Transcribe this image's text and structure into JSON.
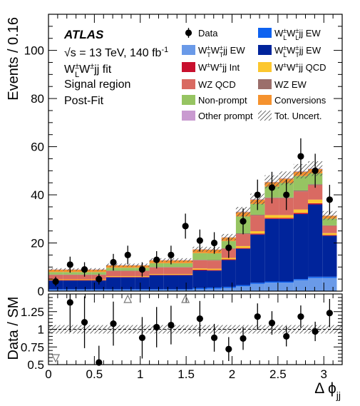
{
  "chart_data": {
    "type": "bar",
    "stacked": true,
    "x": [
      0.0785,
      0.2356,
      0.3927,
      0.5498,
      0.7069,
      0.8639,
      1.021,
      1.1781,
      1.3352,
      1.4923,
      1.6493,
      1.8064,
      1.9635,
      2.1206,
      2.2777,
      2.4347,
      2.5918,
      2.7489,
      2.906,
      3.0631
    ],
    "bin_edges": [
      0,
      0.1571,
      0.3142,
      0.4712,
      0.6283,
      0.7854,
      0.9425,
      1.0996,
      1.2566,
      1.4137,
      1.5708,
      1.7279,
      1.885,
      2.042,
      2.1991,
      2.3562,
      2.5133,
      2.6704,
      2.8274,
      2.9845,
      3.1416
    ],
    "series": [
      {
        "name": "W^{±}_{T}W^{±}_{T}jj EW",
        "color": "#6a9ae8",
        "values": [
          0.5,
          0.5,
          0.5,
          0.5,
          0.5,
          0.5,
          0.5,
          0.5,
          0.5,
          0.5,
          0.8,
          1.0,
          1.3,
          2.0,
          3.0,
          3.5,
          3.5,
          4.5,
          5.5,
          5.5
        ]
      },
      {
        "name": "W^{±}_{L}W^{±}_{L}jj EW",
        "color": "#0e62f0",
        "values": [
          0.3,
          0.3,
          0.3,
          0.3,
          0.3,
          0.3,
          0.3,
          0.3,
          0.3,
          0.3,
          0.5,
          0.5,
          0.5,
          0.5,
          0.5,
          0.5,
          0.5,
          0.5,
          0.5,
          0.5
        ]
      },
      {
        "name": "W^{±}_{L}W^{±}_{T}jj EW",
        "color": "#00249b",
        "values": [
          3.6,
          3.6,
          3.6,
          3.6,
          4.9,
          4.9,
          4.9,
          5.8,
          5.8,
          5.8,
          7.3,
          7.0,
          11.1,
          15.1,
          20.0,
          26.0,
          26.0,
          27.0,
          30.0,
          17.0
        ]
      },
      {
        "name": "W^{±}W^{±}jj Int",
        "color": "#c8102e",
        "values": [
          0.2,
          0.2,
          0.2,
          0.2,
          0.2,
          0.2,
          0.2,
          0.2,
          0.2,
          0.2,
          0.3,
          0.3,
          0.3,
          0.3,
          0.4,
          0.4,
          0.4,
          0.5,
          0.5,
          0.3
        ]
      },
      {
        "name": "W^{±}W^{±}jj QCD",
        "color": "#fcc72e",
        "values": [
          0.3,
          0.3,
          0.3,
          0.3,
          0.3,
          0.3,
          0.3,
          0.3,
          0.3,
          0.3,
          0.5,
          0.5,
          0.6,
          0.8,
          1.0,
          1.2,
          1.2,
          1.4,
          1.5,
          0.8
        ]
      },
      {
        "name": "WZ QCD",
        "color": "#d96a62",
        "values": [
          1.8,
          1.8,
          1.8,
          1.8,
          2.1,
          2.1,
          2.1,
          2.7,
          2.7,
          2.7,
          3.4,
          3.4,
          3.8,
          5.0,
          6.5,
          7.0,
          7.0,
          7.5,
          6.0,
          3.0
        ]
      },
      {
        "name": "WZ EW",
        "color": "#9b6f6b",
        "values": [
          0.2,
          0.2,
          0.2,
          0.2,
          0.2,
          0.2,
          0.2,
          0.2,
          0.2,
          0.2,
          0.2,
          0.2,
          0.2,
          0.3,
          0.3,
          0.3,
          0.3,
          0.4,
          0.4,
          0.2
        ]
      },
      {
        "name": "Non-prompt",
        "color": "#96c462",
        "values": [
          1.0,
          1.0,
          1.0,
          1.0,
          1.2,
          1.2,
          1.2,
          1.6,
          1.6,
          1.6,
          2.8,
          2.8,
          3.0,
          7.0,
          4.5,
          4.5,
          6.0,
          6.0,
          4.5,
          2.8
        ]
      },
      {
        "name": "Conversions",
        "color": "#f5922e",
        "values": [
          1.0,
          1.0,
          1.0,
          1.0,
          1.0,
          1.0,
          1.0,
          1.2,
          1.2,
          1.2,
          1.5,
          1.5,
          1.5,
          1.8,
          1.8,
          1.8,
          1.8,
          1.8,
          1.8,
          1.2
        ]
      },
      {
        "name": "Other prompt",
        "color": "#c99ad0",
        "values": [
          0.1,
          0.1,
          0.1,
          0.1,
          0.1,
          0.1,
          0.1,
          0.1,
          0.1,
          0.1,
          0.1,
          0.1,
          0.1,
          0.2,
          0.2,
          0.2,
          0.2,
          0.2,
          0.2,
          0.1
        ]
      }
    ],
    "data": {
      "name": "Data",
      "values": [
        4,
        11,
        9,
        5,
        12,
        15,
        9,
        13,
        15,
        27,
        21,
        20,
        18,
        29,
        40,
        43,
        40,
        56,
        50,
        38
      ]
    },
    "ratio": [
      0.56,
      1.38,
      1.1,
      0.53,
      1.08,
      1.9,
      0.88,
      1.03,
      1.06,
      1.8,
      1.15,
      0.88,
      0.72,
      0.87,
      1.18,
      1.09,
      0.9,
      1.18,
      0.97,
      1.23
    ],
    "ratio_offscale": [
      {
        "bin": 0,
        "direction": "down"
      },
      {
        "bin": 5,
        "direction": "up"
      },
      {
        "bin": 9,
        "direction": "up"
      }
    ],
    "uncertainty_fraction": 0.06,
    "ylim": [
      0,
      115
    ],
    "xlim": [
      0,
      3.2
    ],
    "ratio_ylim": [
      0.5,
      1.5
    ],
    "xticks_major": [
      0,
      0.5,
      1,
      1.5,
      2,
      2.5,
      3
    ],
    "yticks_major": [
      0,
      20,
      40,
      60,
      80,
      100
    ],
    "ratio_yticks": [
      0.5,
      0.75,
      1,
      1.25
    ],
    "xlabel": "Δ ϕ",
    "xlabel_sub": "jj",
    "ylabel": "Events / 0.16",
    "ratio_ylabel": "Data / SM",
    "legend_placement": "top-right",
    "legend_columns": [
      [
        "Data",
        "W^{±}_{T}W^{±}_{T}jj EW",
        "W^{±}W^{±}jj Int",
        "WZ QCD",
        "Non-prompt",
        "Other prompt"
      ],
      [
        "W^{±}_{L}W^{±}_{L}jj EW",
        "W^{±}_{L}W^{±}_{T}jj EW",
        "W^{±}W^{±}jj QCD",
        "WZ EW",
        "Conversions",
        "Tot. Uncert."
      ]
    ],
    "annotations": {
      "experiment": "ATLAS",
      "energy": "√s = 13 TeV, 140 fb^{-1}",
      "fit": "W^{±}_{L}W^{±}jj fit",
      "region": "Signal region",
      "stage": "Post-Fit"
    }
  },
  "colors": {
    "uncertainty_hatch": "#555555",
    "frame": "#000000"
  }
}
